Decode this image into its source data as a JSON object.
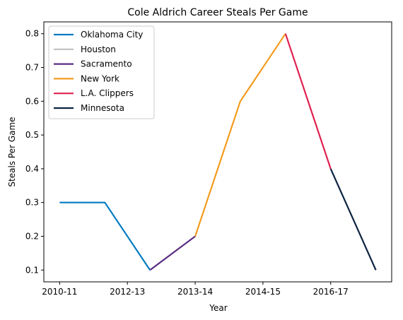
{
  "chart_data": {
    "type": "line",
    "title": "Cole Aldrich Career Steals Per Game",
    "xlabel": "Year",
    "ylabel": "Steals Per Game",
    "x_tick_labels": [
      "2010-11",
      "2012-13",
      "2013-14",
      "2014-15",
      "2016-17"
    ],
    "y_ticks": [
      0.1,
      0.2,
      0.3,
      0.4,
      0.5,
      0.6,
      0.7,
      0.8
    ],
    "ylim": [
      0.065,
      0.835
    ],
    "grid": false,
    "legend_position": "top-left",
    "series": [
      {
        "name": "Oklahoma City",
        "color": "#007AC1",
        "points": [
          [
            0,
            0.3
          ],
          [
            1,
            0.3
          ],
          [
            2,
            0.1
          ]
        ]
      },
      {
        "name": "Houston",
        "color": "#BEC0C2",
        "points": [
          [
            2,
            0.1
          ]
        ]
      },
      {
        "name": "Sacramento",
        "color": "#5A2D81",
        "points": [
          [
            2,
            0.1
          ],
          [
            3,
            0.2
          ]
        ]
      },
      {
        "name": "New York",
        "color": "#F39C1E",
        "points": [
          [
            3,
            0.2
          ],
          [
            4,
            0.6
          ],
          [
            5,
            0.8
          ]
        ]
      },
      {
        "name": "L.A. Clippers",
        "color": "#E0224E",
        "points": [
          [
            5,
            0.8
          ],
          [
            6,
            0.4
          ]
        ]
      },
      {
        "name": "Minnesota",
        "color": "#0C2340",
        "points": [
          [
            6,
            0.4
          ],
          [
            7,
            0.1
          ]
        ]
      }
    ]
  }
}
